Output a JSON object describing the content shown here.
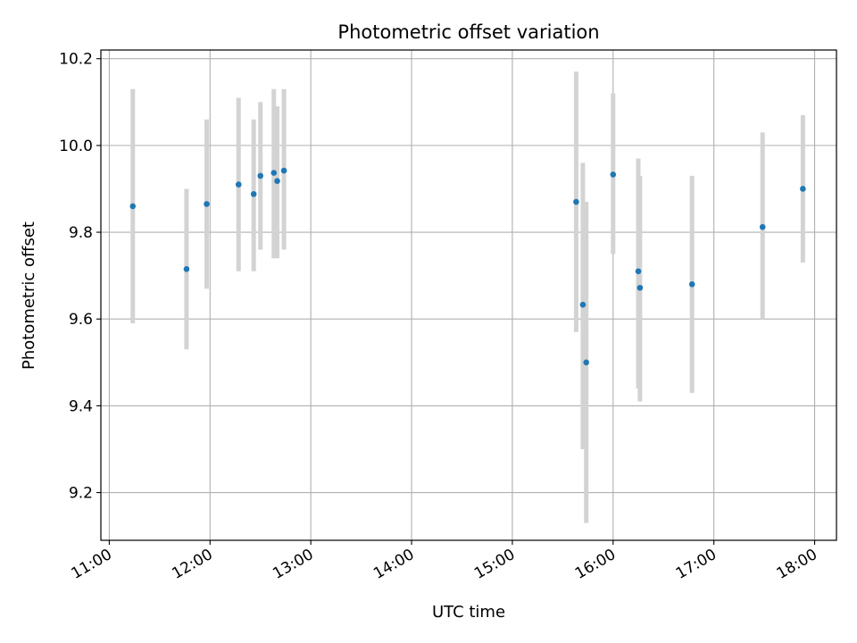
{
  "chart_data": {
    "type": "scatter",
    "title": "Photometric offset variation",
    "xlabel": "UTC time",
    "ylabel": "Photometric offset",
    "x_axis_type": "time",
    "xlim": [
      "10:55",
      "18:13"
    ],
    "ylim": [
      9.09,
      10.22
    ],
    "x_ticks": [
      "11:00",
      "12:00",
      "13:00",
      "14:00",
      "15:00",
      "16:00",
      "17:00",
      "18:00"
    ],
    "y_ticks": [
      "9.2",
      "9.4",
      "9.6",
      "9.8",
      "10.0",
      "10.2"
    ],
    "grid": true,
    "marker_color": "#1f77b4",
    "errorbar_color": "#d3d3d3",
    "points": [
      {
        "x": "11:14",
        "y": 9.86,
        "y_low": 9.59,
        "y_high": 10.13
      },
      {
        "x": "11:46",
        "y": 9.715,
        "y_low": 9.53,
        "y_high": 9.9
      },
      {
        "x": "11:58",
        "y": 9.865,
        "y_low": 9.67,
        "y_high": 10.06
      },
      {
        "x": "12:17",
        "y": 9.91,
        "y_low": 9.71,
        "y_high": 10.11
      },
      {
        "x": "12:26",
        "y": 9.888,
        "y_low": 9.71,
        "y_high": 10.06
      },
      {
        "x": "12:30",
        "y": 9.93,
        "y_low": 9.76,
        "y_high": 10.1
      },
      {
        "x": "12:38",
        "y": 9.937,
        "y_low": 9.74,
        "y_high": 10.13
      },
      {
        "x": "12:40",
        "y": 9.918,
        "y_low": 9.74,
        "y_high": 10.09
      },
      {
        "x": "12:44",
        "y": 9.942,
        "y_low": 9.76,
        "y_high": 10.13
      },
      {
        "x": "15:38",
        "y": 9.87,
        "y_low": 9.57,
        "y_high": 10.17
      },
      {
        "x": "15:42",
        "y": 9.633,
        "y_low": 9.3,
        "y_high": 9.96
      },
      {
        "x": "15:44",
        "y": 9.5,
        "y_low": 9.13,
        "y_high": 9.87
      },
      {
        "x": "16:00",
        "y": 9.933,
        "y_low": 9.75,
        "y_high": 10.12
      },
      {
        "x": "16:15",
        "y": 9.71,
        "y_low": 9.44,
        "y_high": 9.97
      },
      {
        "x": "16:16",
        "y": 9.672,
        "y_low": 9.41,
        "y_high": 9.93
      },
      {
        "x": "16:47",
        "y": 9.68,
        "y_low": 9.43,
        "y_high": 9.93
      },
      {
        "x": "17:29",
        "y": 9.812,
        "y_low": 9.6,
        "y_high": 10.03
      },
      {
        "x": "17:53",
        "y": 9.9,
        "y_low": 9.73,
        "y_high": 10.07
      }
    ]
  }
}
